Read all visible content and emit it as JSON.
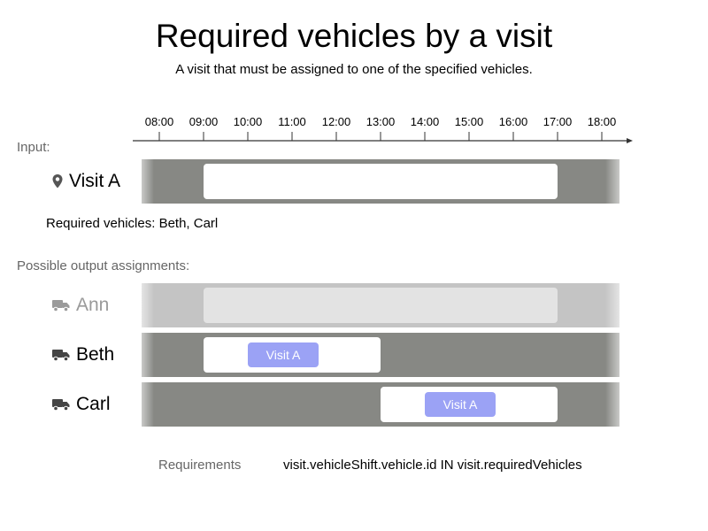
{
  "title": "Required vehicles by a visit",
  "subtitle": "A visit that must be assigned to one of the specified vehicles.",
  "timeline": {
    "start_hour": 8,
    "end_hour": 18,
    "ticks": [
      "08:00",
      "09:00",
      "10:00",
      "11:00",
      "12:00",
      "13:00",
      "14:00",
      "15:00",
      "16:00",
      "17:00",
      "18:00"
    ]
  },
  "input": {
    "section_label": "Input:",
    "visit": {
      "name": "Visit A",
      "icon": "map-pin-icon",
      "window_start": 9,
      "window_end": 17
    },
    "required_text": "Required vehicles: Beth, Carl"
  },
  "output": {
    "section_label": "Possible output assignments:",
    "vehicles": [
      {
        "name": "Ann",
        "icon": "truck-icon",
        "faded": true,
        "shift_start": 9,
        "shift_end": 17,
        "visit": null
      },
      {
        "name": "Beth",
        "icon": "truck-icon",
        "faded": false,
        "shift_start": 9,
        "shift_end": 13,
        "visit": {
          "label": "Visit A",
          "start": 10,
          "end": 11.6
        }
      },
      {
        "name": "Carl",
        "icon": "truck-icon",
        "faded": false,
        "shift_start": 13,
        "shift_end": 17,
        "visit": {
          "label": "Visit A",
          "start": 14,
          "end": 15.6
        }
      }
    ]
  },
  "requirements": {
    "label": "Requirements",
    "value": "visit.vehicleShift.vehicle.id IN visit.requiredVehicles"
  },
  "colors": {
    "track_dark": "#878884",
    "track_light": "#c4c4c4",
    "visit_fill": "#9ba2f5",
    "faded_text": "#9a9a9a"
  }
}
